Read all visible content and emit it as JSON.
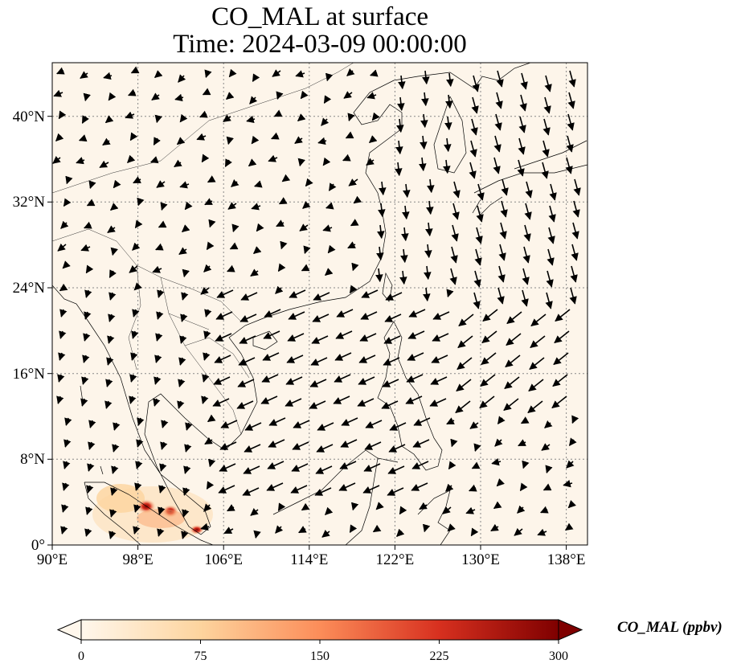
{
  "title": {
    "line1": "CO_MAL at surface",
    "line2": "Time: 2024-03-09 00:00:00"
  },
  "map": {
    "lon_range": [
      90,
      140
    ],
    "lat_range": [
      0,
      45
    ],
    "lon_tick_labels": [
      "90°E",
      "98°E",
      "106°E",
      "114°E",
      "122°E",
      "130°E",
      "138°E"
    ],
    "lat_tick_labels": [
      "0°",
      "8°N",
      "16°N",
      "24°N",
      "32°N",
      "40°N"
    ],
    "gridlines": true,
    "background_color": "#fdf5ea",
    "high_concentration_region": "Sumatra / Malay Peninsula"
  },
  "colorbar": {
    "label": "CO_MAL (ppbv)",
    "min": 0,
    "max": 300,
    "tick_labels": [
      "0",
      "75",
      "150",
      "225",
      "300"
    ],
    "colormap": "OrRd",
    "colors": [
      "#fff7ec",
      "#fdd49e",
      "#fc8d59",
      "#d7301f",
      "#7f0000"
    ],
    "extend": "both"
  }
}
